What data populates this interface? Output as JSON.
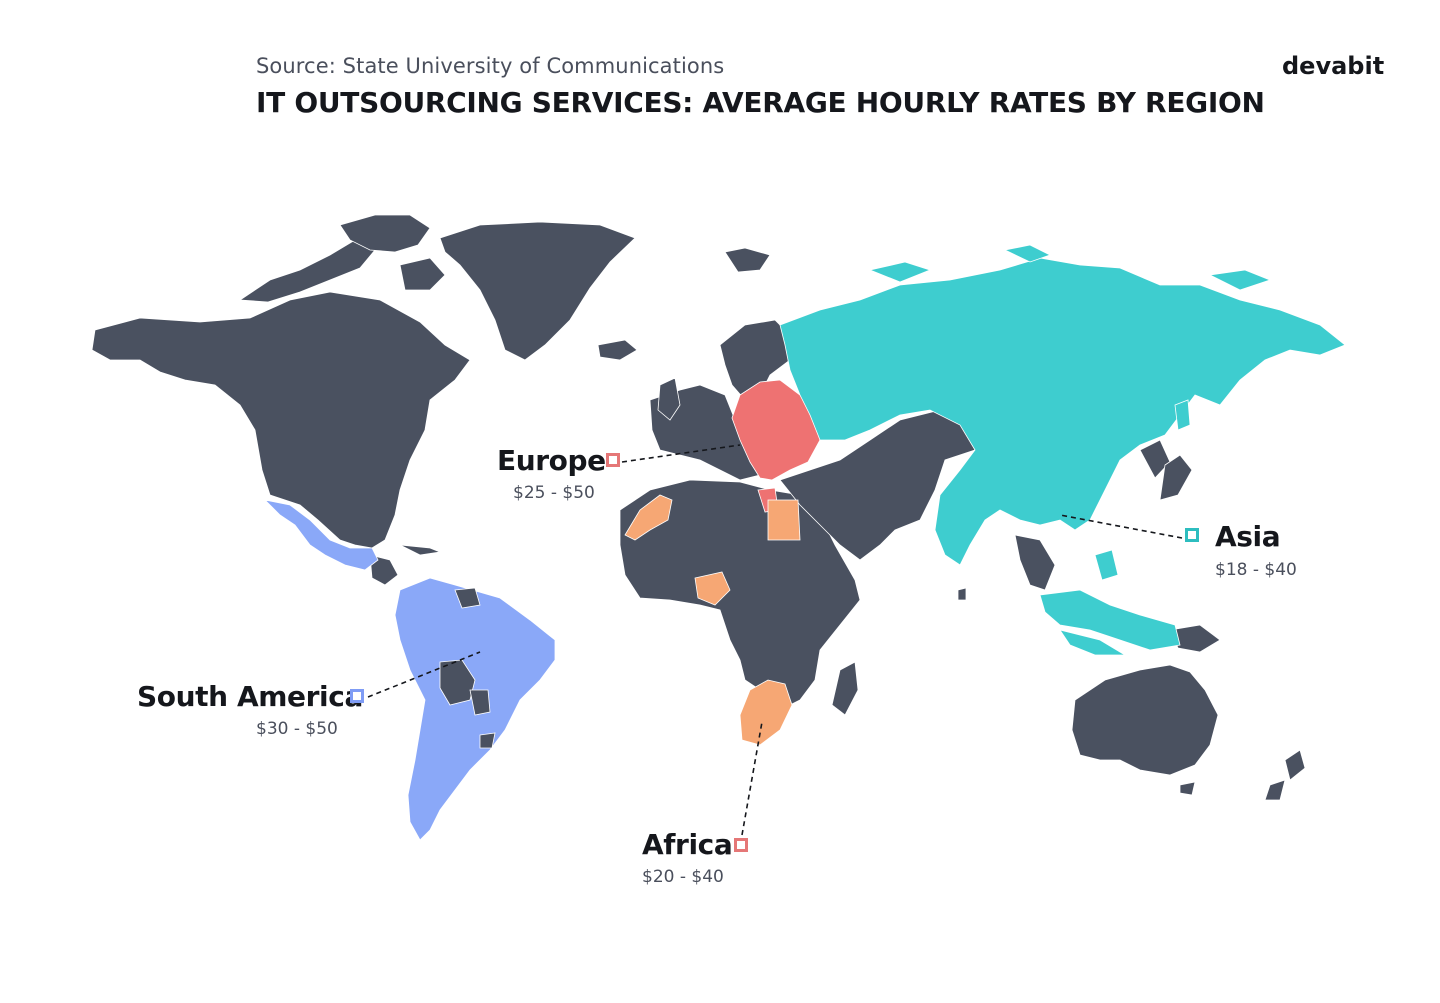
{
  "header": {
    "source": "Source: State University of Communications",
    "title": "IT OUTSOURCING SERVICES: AVERAGE HOURLY RATES BY REGION",
    "brand": "devabit"
  },
  "colors": {
    "land": "#4a5160",
    "europe": "#ee7272",
    "asia": "#3ecdcf",
    "south_america": "#8aa8f8",
    "africa": "#f6a774",
    "marker_europe": "#e57777",
    "marker_asia": "#2dbdbf",
    "marker_south_america": "#7f9cf5",
    "marker_africa": "#e57777"
  },
  "regions": [
    {
      "key": "europe",
      "name": "Europe",
      "rate": "$25 - $50"
    },
    {
      "key": "asia",
      "name": "Asia",
      "rate": "$18 - $40"
    },
    {
      "key": "south_america",
      "name": "South America",
      "rate": "$30 - $50"
    },
    {
      "key": "africa",
      "name": "Africa",
      "rate": "$20 - $40"
    }
  ]
}
